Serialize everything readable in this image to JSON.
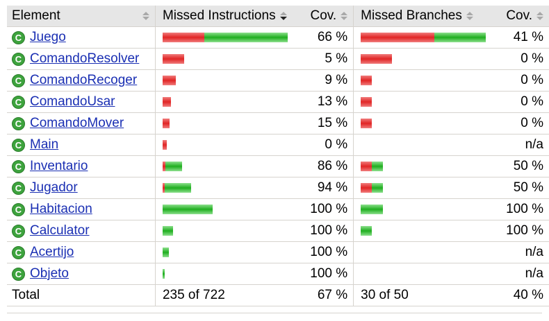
{
  "headers": {
    "element": "Element",
    "missed_instructions": "Missed Instructions",
    "cov1": "Cov.",
    "missed_branches": "Missed Branches",
    "cov2": "Cov."
  },
  "sort": {
    "active_column": "missed_instructions",
    "direction": "descending"
  },
  "colors": {
    "missed": "#e12525",
    "covered": "#1fae1f",
    "link": "#1a2fb3",
    "header_bg": "#e6e6e6"
  },
  "rows": [
    {
      "icon": "class-icon",
      "name": "Juego",
      "instr_missed_frac": 0.333,
      "instr_covered_frac": 0.667,
      "instr_cov": "66 %",
      "br_missed_frac": 0.59,
      "br_covered_frac": 0.41,
      "br_cov": "41 %"
    },
    {
      "icon": "class-icon",
      "name": "ComandoResolver",
      "instr_missed_frac": 0.172,
      "instr_covered_frac": 0.0,
      "instr_cov": "5 %",
      "br_missed_frac": 0.25,
      "br_covered_frac": 0.0,
      "br_cov": "0 %"
    },
    {
      "icon": "class-icon",
      "name": "ComandoRecoger",
      "instr_missed_frac": 0.106,
      "instr_covered_frac": 0.0,
      "instr_cov": "9 %",
      "br_missed_frac": 0.09,
      "br_covered_frac": 0.0,
      "br_cov": "0 %"
    },
    {
      "icon": "class-icon",
      "name": "ComandoUsar",
      "instr_missed_frac": 0.067,
      "instr_covered_frac": 0.0,
      "instr_cov": "13 %",
      "br_missed_frac": 0.09,
      "br_covered_frac": 0.0,
      "br_cov": "0 %"
    },
    {
      "icon": "class-icon",
      "name": "ComandoMover",
      "instr_missed_frac": 0.056,
      "instr_covered_frac": 0.0,
      "instr_cov": "15 %",
      "br_missed_frac": 0.09,
      "br_covered_frac": 0.0,
      "br_cov": "0 %"
    },
    {
      "icon": "class-icon",
      "name": "Main",
      "instr_missed_frac": 0.033,
      "instr_covered_frac": 0.0,
      "instr_cov": "0 %",
      "br_missed_frac": 0.0,
      "br_covered_frac": 0.0,
      "br_cov": "n/a"
    },
    {
      "icon": "class-icon",
      "name": "Inventario",
      "instr_missed_frac": 0.022,
      "instr_covered_frac": 0.133,
      "instr_cov": "86 %",
      "br_missed_frac": 0.09,
      "br_covered_frac": 0.09,
      "br_cov": "50 %"
    },
    {
      "icon": "class-icon",
      "name": "Jugador",
      "instr_missed_frac": 0.011,
      "instr_covered_frac": 0.211,
      "instr_cov": "94 %",
      "br_missed_frac": 0.09,
      "br_covered_frac": 0.09,
      "br_cov": "50 %"
    },
    {
      "icon": "class-icon",
      "name": "Habitacion",
      "instr_missed_frac": 0.0,
      "instr_covered_frac": 0.4,
      "instr_cov": "100 %",
      "br_missed_frac": 0.0,
      "br_covered_frac": 0.18,
      "br_cov": "100 %"
    },
    {
      "icon": "class-icon",
      "name": "Calculator",
      "instr_missed_frac": 0.0,
      "instr_covered_frac": 0.083,
      "instr_cov": "100 %",
      "br_missed_frac": 0.0,
      "br_covered_frac": 0.09,
      "br_cov": "100 %"
    },
    {
      "icon": "class-icon",
      "name": "Acertijo",
      "instr_missed_frac": 0.0,
      "instr_covered_frac": 0.05,
      "instr_cov": "100 %",
      "br_missed_frac": 0.0,
      "br_covered_frac": 0.0,
      "br_cov": "n/a"
    },
    {
      "icon": "class-icon",
      "name": "Objeto",
      "instr_missed_frac": 0.0,
      "instr_covered_frac": 0.017,
      "instr_cov": "100 %",
      "br_missed_frac": 0.0,
      "br_covered_frac": 0.0,
      "br_cov": "n/a"
    }
  ],
  "total": {
    "label": "Total",
    "instr_missed": "235 of 722",
    "instr_cov": "67 %",
    "br_missed": "30 of 50",
    "br_cov": "40 %"
  }
}
